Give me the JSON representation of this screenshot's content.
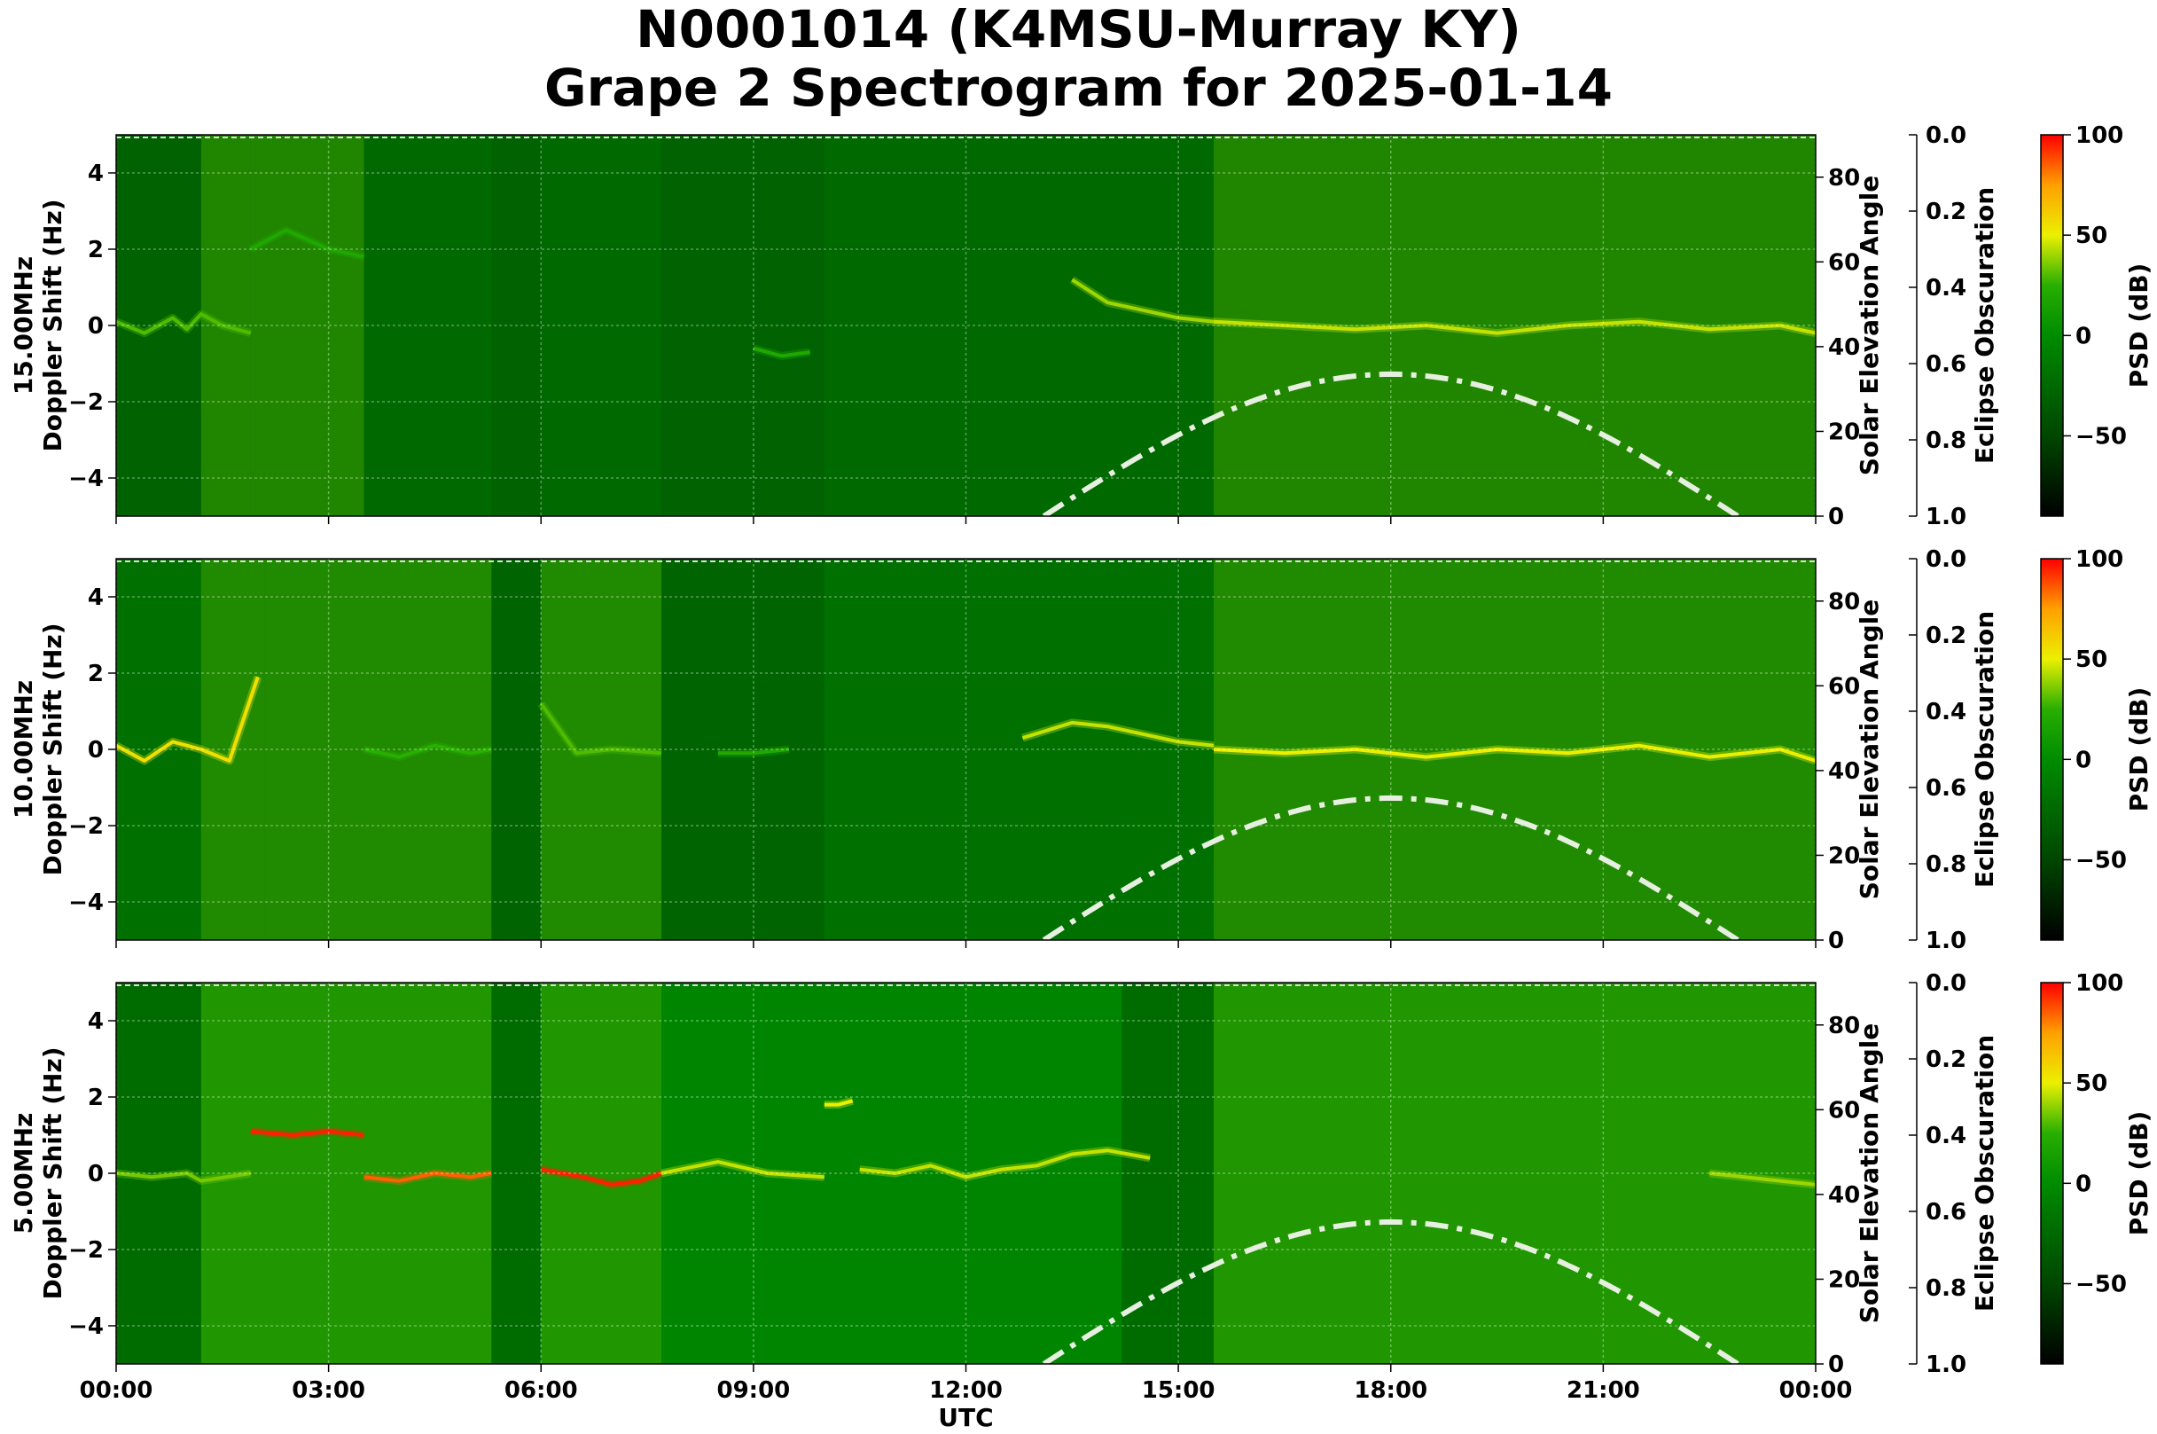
{
  "figure": {
    "title": "N0001014 (K4MSU-Murray KY)",
    "subtitle": "Grape 2 Spectrogram for 2025-01-14",
    "xlabel": "UTC",
    "x_ticks": [
      "00:00",
      "03:00",
      "06:00",
      "09:00",
      "12:00",
      "15:00",
      "18:00",
      "21:00",
      "00:00"
    ]
  },
  "chart_data": [
    {
      "type": "heatmap",
      "frequency_label": "15.00MHz",
      "ylabel": "Doppler Shift (Hz)",
      "ylim": [
        -5,
        5
      ],
      "y_ticks": [
        -4,
        -2,
        0,
        2,
        4
      ],
      "xlim_hours": [
        0,
        24
      ],
      "right_axis_label": "Solar Elevation Angle",
      "right_axis_ticks": [
        0,
        20,
        40,
        60,
        80
      ],
      "right_axis_range": [
        0,
        90
      ],
      "eclipse_label": "Eclipse Obscuration",
      "eclipse_ticks": [
        "0.0",
        "0.2",
        "0.4",
        "0.6",
        "0.8",
        "1.0"
      ],
      "colorbar_label": "PSD (dB)",
      "colorbar_ticks": [
        100,
        50,
        0,
        -50
      ],
      "colorbar_range": [
        -90,
        100
      ],
      "grid": true,
      "solar_elevation_curve": {
        "sunrise_hour": 13.1,
        "noon_hour": 18.0,
        "sunset_hour": 22.9,
        "peak_deg": 33.5
      },
      "background_db": -25,
      "dark_bands": [
        [
          0.0,
          1.2
        ],
        [
          5.3,
          6.0
        ],
        [
          7.7,
          10.0
        ]
      ],
      "bright_bands": [
        [
          1.2,
          1.9
        ],
        [
          1.9,
          3.5
        ],
        [
          15.5,
          24.0
        ]
      ],
      "signal_traces": [
        {
          "x": [
            0,
            0.4,
            0.8,
            1.0,
            1.2,
            1.5,
            1.9
          ],
          "y": [
            0.1,
            -0.2,
            0.2,
            -0.1,
            0.3,
            0.0,
            -0.2
          ],
          "db": 30
        },
        {
          "x": [
            1.9,
            2.4,
            3.0,
            3.5
          ],
          "y": [
            2.0,
            2.5,
            2.0,
            1.8
          ],
          "db": 20
        },
        {
          "x": [
            9.0,
            9.4,
            9.8
          ],
          "y": [
            -0.6,
            -0.8,
            -0.7
          ],
          "db": 20
        },
        {
          "x": [
            13.5,
            14.0,
            14.5,
            15.0,
            15.5
          ],
          "y": [
            1.2,
            0.6,
            0.4,
            0.2,
            0.1
          ],
          "db": 40
        },
        {
          "x": [
            15.5,
            16.5,
            17.5,
            18.5,
            19.5,
            20.5,
            21.5,
            22.5,
            23.5,
            24.0
          ],
          "y": [
            0.1,
            0.0,
            -0.1,
            0.0,
            -0.2,
            0.0,
            0.1,
            -0.1,
            0.0,
            -0.2
          ],
          "db": 45
        }
      ]
    },
    {
      "type": "heatmap",
      "frequency_label": "10.00MHz",
      "ylabel": "Doppler Shift (Hz)",
      "ylim": [
        -5,
        5
      ],
      "y_ticks": [
        -4,
        -2,
        0,
        2,
        4
      ],
      "xlim_hours": [
        0,
        24
      ],
      "right_axis_label": "Solar Elevation Angle",
      "right_axis_ticks": [
        0,
        20,
        40,
        60,
        80
      ],
      "right_axis_range": [
        0,
        90
      ],
      "eclipse_label": "Eclipse Obscuration",
      "eclipse_ticks": [
        "0.0",
        "0.2",
        "0.4",
        "0.6",
        "0.8",
        "1.0"
      ],
      "colorbar_label": "PSD (dB)",
      "colorbar_ticks": [
        100,
        50,
        0,
        -50
      ],
      "colorbar_range": [
        -90,
        100
      ],
      "grid": true,
      "solar_elevation_curve": {
        "sunrise_hour": 13.1,
        "noon_hour": 18.0,
        "sunset_hour": 22.9,
        "peak_deg": 33.5
      },
      "background_db": -20,
      "dark_bands": [
        [
          5.3,
          6.0
        ],
        [
          7.7,
          10.0
        ]
      ],
      "bright_bands": [
        [
          1.2,
          2.1
        ],
        [
          2.1,
          3.5
        ],
        [
          3.5,
          5.3
        ],
        [
          6.0,
          7.7
        ],
        [
          15.5,
          24.0
        ]
      ],
      "signal_traces": [
        {
          "x": [
            0,
            0.4,
            0.8,
            1.2,
            1.6,
            2.0
          ],
          "y": [
            0.1,
            -0.3,
            0.2,
            0.0,
            -0.3,
            1.9
          ],
          "db": 55
        },
        {
          "x": [
            3.5,
            4.0,
            4.5,
            5.0,
            5.3
          ],
          "y": [
            0.0,
            -0.2,
            0.1,
            -0.1,
            0.0
          ],
          "db": 25
        },
        {
          "x": [
            6.0,
            6.5,
            7.0,
            7.7
          ],
          "y": [
            1.2,
            -0.1,
            0.0,
            -0.1
          ],
          "db": 30
        },
        {
          "x": [
            8.5,
            9.0,
            9.5
          ],
          "y": [
            -0.1,
            -0.1,
            0.0
          ],
          "db": 20
        },
        {
          "x": [
            12.8,
            13.5,
            14.0,
            14.5,
            15.0,
            15.5
          ],
          "y": [
            0.3,
            0.7,
            0.6,
            0.4,
            0.2,
            0.1
          ],
          "db": 45
        },
        {
          "x": [
            15.5,
            16.5,
            17.5,
            18.5,
            19.5,
            20.5,
            21.5,
            22.5,
            23.5,
            24.0
          ],
          "y": [
            0.0,
            -0.1,
            0.0,
            -0.2,
            0.0,
            -0.1,
            0.1,
            -0.2,
            0.0,
            -0.3
          ],
          "db": 50
        }
      ]
    },
    {
      "type": "heatmap",
      "frequency_label": "5.00MHz",
      "ylabel": "Doppler Shift (Hz)",
      "ylim": [
        -5,
        5
      ],
      "y_ticks": [
        -4,
        -2,
        0,
        2,
        4
      ],
      "xlim_hours": [
        0,
        24
      ],
      "right_axis_label": "Solar Elevation Angle",
      "right_axis_ticks": [
        0,
        20,
        40,
        60,
        80
      ],
      "right_axis_range": [
        0,
        90
      ],
      "eclipse_label": "Eclipse Obscuration",
      "eclipse_ticks": [
        "0.0",
        "0.2",
        "0.4",
        "0.6",
        "0.8",
        "1.0"
      ],
      "colorbar_label": "PSD (dB)",
      "colorbar_ticks": [
        100,
        50,
        0,
        -50
      ],
      "colorbar_range": [
        -90,
        100
      ],
      "grid": true,
      "solar_elevation_curve": {
        "sunrise_hour": 13.1,
        "noon_hour": 18.0,
        "sunset_hour": 22.9,
        "peak_deg": 33.5
      },
      "background_db": -5,
      "dark_bands": [
        [
          0.0,
          1.2
        ],
        [
          5.3,
          6.0
        ],
        [
          14.2,
          15.5
        ]
      ],
      "bright_bands": [
        [
          1.2,
          5.3
        ],
        [
          6.0,
          7.7
        ],
        [
          15.5,
          24.0
        ]
      ],
      "signal_traces": [
        {
          "x": [
            0,
            0.5,
            1.0,
            1.2,
            1.9
          ],
          "y": [
            0.0,
            -0.1,
            0.0,
            -0.2,
            0.0
          ],
          "db": 35
        },
        {
          "x": [
            1.9,
            2.5,
            3.0,
            3.5
          ],
          "y": [
            1.1,
            1.0,
            1.1,
            1.0
          ],
          "db": 95
        },
        {
          "x": [
            3.5,
            4.0,
            4.5,
            5.0,
            5.3
          ],
          "y": [
            -0.1,
            -0.2,
            0.0,
            -0.1,
            0.0
          ],
          "db": 85
        },
        {
          "x": [
            6.0,
            6.3,
            6.6,
            7.0,
            7.4,
            7.7
          ],
          "y": [
            0.1,
            0.0,
            -0.1,
            -0.3,
            -0.2,
            0.0
          ],
          "db": 95
        },
        {
          "x": [
            7.7,
            8.5,
            9.2,
            10.0
          ],
          "y": [
            0.0,
            0.3,
            0.0,
            -0.1
          ],
          "db": 45
        },
        {
          "x": [
            10.0,
            10.2,
            10.4
          ],
          "y": [
            1.8,
            1.8,
            1.9
          ],
          "db": 50
        },
        {
          "x": [
            10.5,
            11.0,
            11.5,
            12.0,
            12.5,
            13.0,
            13.5,
            14.0,
            14.6
          ],
          "y": [
            0.1,
            0.0,
            0.2,
            -0.1,
            0.1,
            0.2,
            0.5,
            0.6,
            0.4
          ],
          "db": 45
        },
        {
          "x": [
            22.5,
            23.0,
            23.5,
            24.0
          ],
          "y": [
            0.0,
            -0.1,
            -0.2,
            -0.3
          ],
          "db": 40
        }
      ]
    }
  ]
}
